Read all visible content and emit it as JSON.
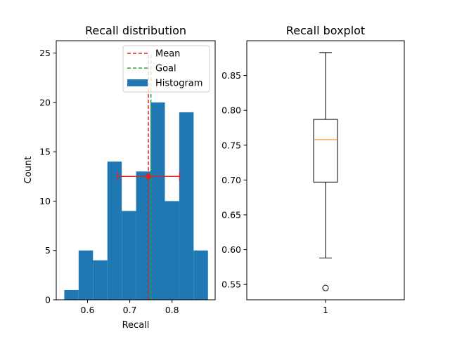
{
  "chart_data": [
    {
      "type": "bar",
      "title": "Recall distribution",
      "xlabel": "Recall",
      "ylabel": "Count",
      "xlim": [
        0.526,
        0.902
      ],
      "ylim": [
        0,
        26.25
      ],
      "xticks": [
        "0.6",
        "0.7",
        "0.8"
      ],
      "xtick_values": [
        0.6,
        0.7,
        0.8
      ],
      "yticks": [
        "0",
        "5",
        "10",
        "15",
        "20",
        "25"
      ],
      "ytick_values": [
        0,
        5,
        10,
        15,
        20,
        25
      ],
      "histogram": {
        "name": "Histogram",
        "color": "#1f77b4",
        "bin_edges": [
          0.545,
          0.579,
          0.613,
          0.647,
          0.681,
          0.715,
          0.749,
          0.783,
          0.817,
          0.851,
          0.885
        ],
        "counts": [
          1,
          5,
          4,
          14,
          9,
          13,
          20,
          10,
          19,
          5
        ]
      },
      "mean_line": {
        "name": "Mean",
        "x": 0.744,
        "color": "#d62728"
      },
      "goal_line": {
        "name": "Goal",
        "x": 0.75,
        "color": "#2ca02c"
      },
      "errorbar": {
        "x": 0.744,
        "y": 12.5,
        "xerr": 0.074,
        "color": "#d62728"
      },
      "legend": {
        "placement": "top-right",
        "entries": [
          "Mean",
          "Goal",
          "Histogram"
        ]
      }
    },
    {
      "type": "boxplot",
      "title": "Recall boxplot",
      "xticks": [
        "1"
      ],
      "ylim": [
        0.528,
        0.9
      ],
      "yticks": [
        "0.55",
        "0.60",
        "0.65",
        "0.70",
        "0.75",
        "0.80",
        "0.85"
      ],
      "ytick_values": [
        0.55,
        0.6,
        0.65,
        0.7,
        0.75,
        0.8,
        0.85
      ],
      "box": {
        "whisker_low": 0.588,
        "q1": 0.697,
        "median": 0.758,
        "q3": 0.787,
        "whisker_high": 0.883,
        "outliers": [
          0.545
        ],
        "median_color": "#ff7f0e"
      }
    }
  ]
}
